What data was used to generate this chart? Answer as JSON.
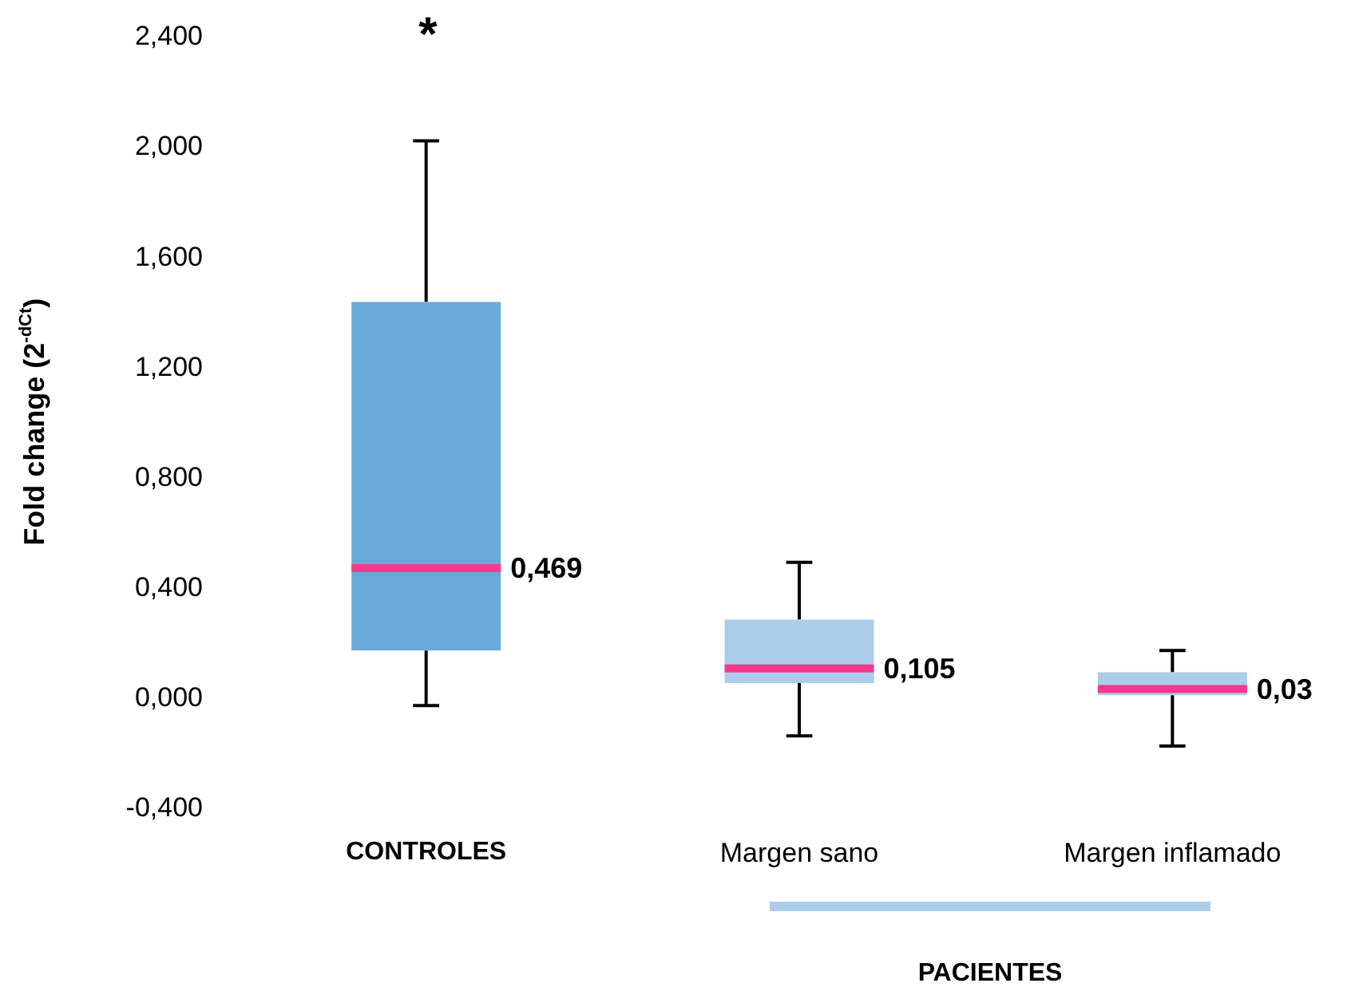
{
  "chart_data": {
    "type": "box",
    "ylabel": "Fold change (2$^{-dCt}$)",
    "categories": [
      "CONTROLES",
      "Margen sano",
      "Margen inflamado"
    ],
    "series": [
      {
        "color": "#6aaad9",
        "boxes": [
          {
            "low": -0.03,
            "q1": 0.17,
            "median": 0.469,
            "q3": 1.435,
            "high": 2.02
          },
          null,
          null
        ]
      },
      {
        "color": "#abcdea",
        "boxes": [
          null,
          {
            "low": -0.14,
            "q1": 0.052,
            "median": 0.105,
            "q3": 0.282,
            "high": 0.49
          },
          {
            "low": -0.177,
            "q1": 0.008,
            "median": 0.03,
            "q3": 0.091,
            "high": 0.17
          }
        ]
      }
    ],
    "value_labels": [
      "0,469",
      "0,105",
      "0,03"
    ],
    "ylim": [
      -0.4,
      2.4
    ],
    "yticks": [
      {
        "value": -0.4,
        "label": "-0,400"
      },
      {
        "value": 0,
        "label": "0,000"
      },
      {
        "value": 0.4,
        "label": "0,400"
      },
      {
        "value": 0.8,
        "label": "0,800"
      },
      {
        "value": 1.2,
        "label": "1,200"
      },
      {
        "value": 1.6,
        "label": "1,600"
      },
      {
        "value": 2.0,
        "label": "2,000"
      },
      {
        "value": 2.4,
        "label": "2,400"
      }
    ],
    "grid": false,
    "annotations": [
      "*",
      "PACIENTES"
    ]
  }
}
